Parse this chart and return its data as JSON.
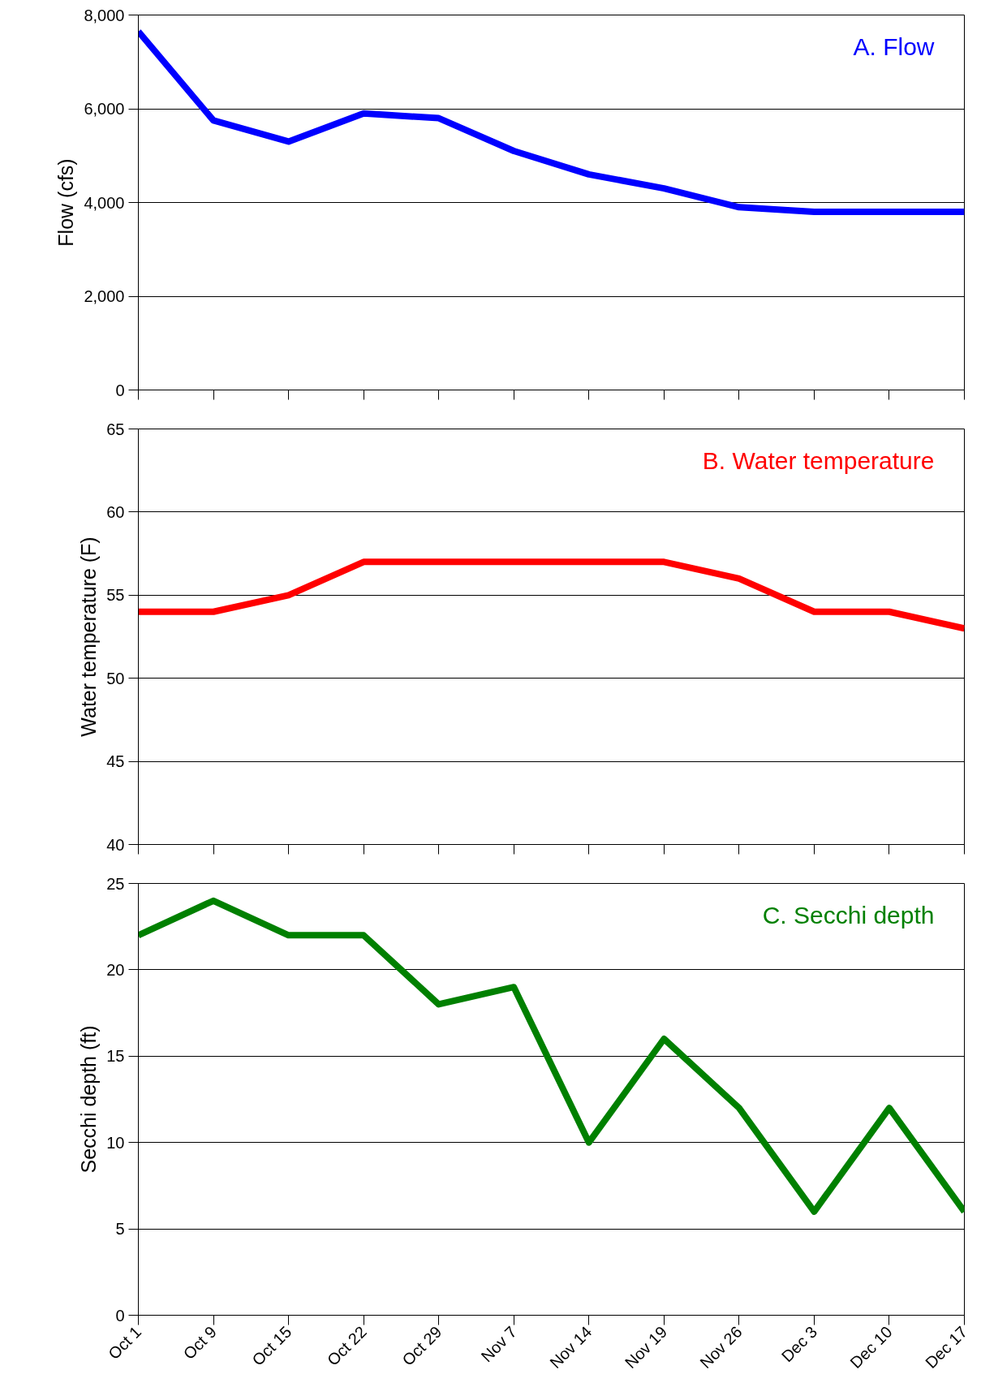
{
  "chart_data": [
    {
      "type": "line",
      "title": "A. Flow",
      "ylabel": "Flow (cfs)",
      "series": [
        {
          "color": "#0000ff",
          "values": [
            7650,
            5750,
            5300,
            5900,
            5800,
            5100,
            4600,
            4300,
            3900,
            3800,
            3800,
            3800
          ]
        }
      ],
      "ylim": [
        0,
        8000
      ],
      "yticks": [
        0,
        {
          "value": 2000,
          "label": "2,000"
        },
        {
          "value": 4000,
          "label": "4,000"
        },
        {
          "value": 6000,
          "label": "6,000"
        },
        {
          "value": 8000,
          "label": "8,000"
        }
      ],
      "grid": "y",
      "tick_labels": "y",
      "line_style": "solid"
    },
    {
      "type": "line",
      "title": "B. Water temperature",
      "ylabel": "Water temperature (F)",
      "series": [
        {
          "color": "#ff0000",
          "values": [
            54,
            54,
            55,
            57,
            57,
            57,
            57,
            57,
            56,
            54,
            54,
            53
          ]
        }
      ],
      "ylim": [
        40,
        65
      ],
      "yticks": [
        40,
        45,
        50,
        55,
        60,
        65
      ],
      "grid": "y",
      "tick_labels": "y",
      "line_style": "solid"
    },
    {
      "type": "line",
      "title": "C. Secchi depth",
      "ylabel": "Secchi depth (ft)",
      "categories": [
        "Oct 1",
        "Oct 9",
        "Oct 15",
        "Oct 22",
        "Oct 29",
        "Nov 7",
        "Nov 14",
        "Nov 19",
        "Nov 26",
        "Dec 3",
        "Dec 10",
        "Dec 17"
      ],
      "series": [
        {
          "color": "#008000",
          "values": [
            22,
            24,
            22,
            22,
            18,
            19,
            10,
            16,
            12,
            6,
            12,
            6
          ]
        }
      ],
      "ylim": [
        0,
        25
      ],
      "yticks": [
        0,
        5,
        10,
        15,
        20,
        25
      ],
      "grid": "y",
      "line_style": "solid"
    }
  ]
}
